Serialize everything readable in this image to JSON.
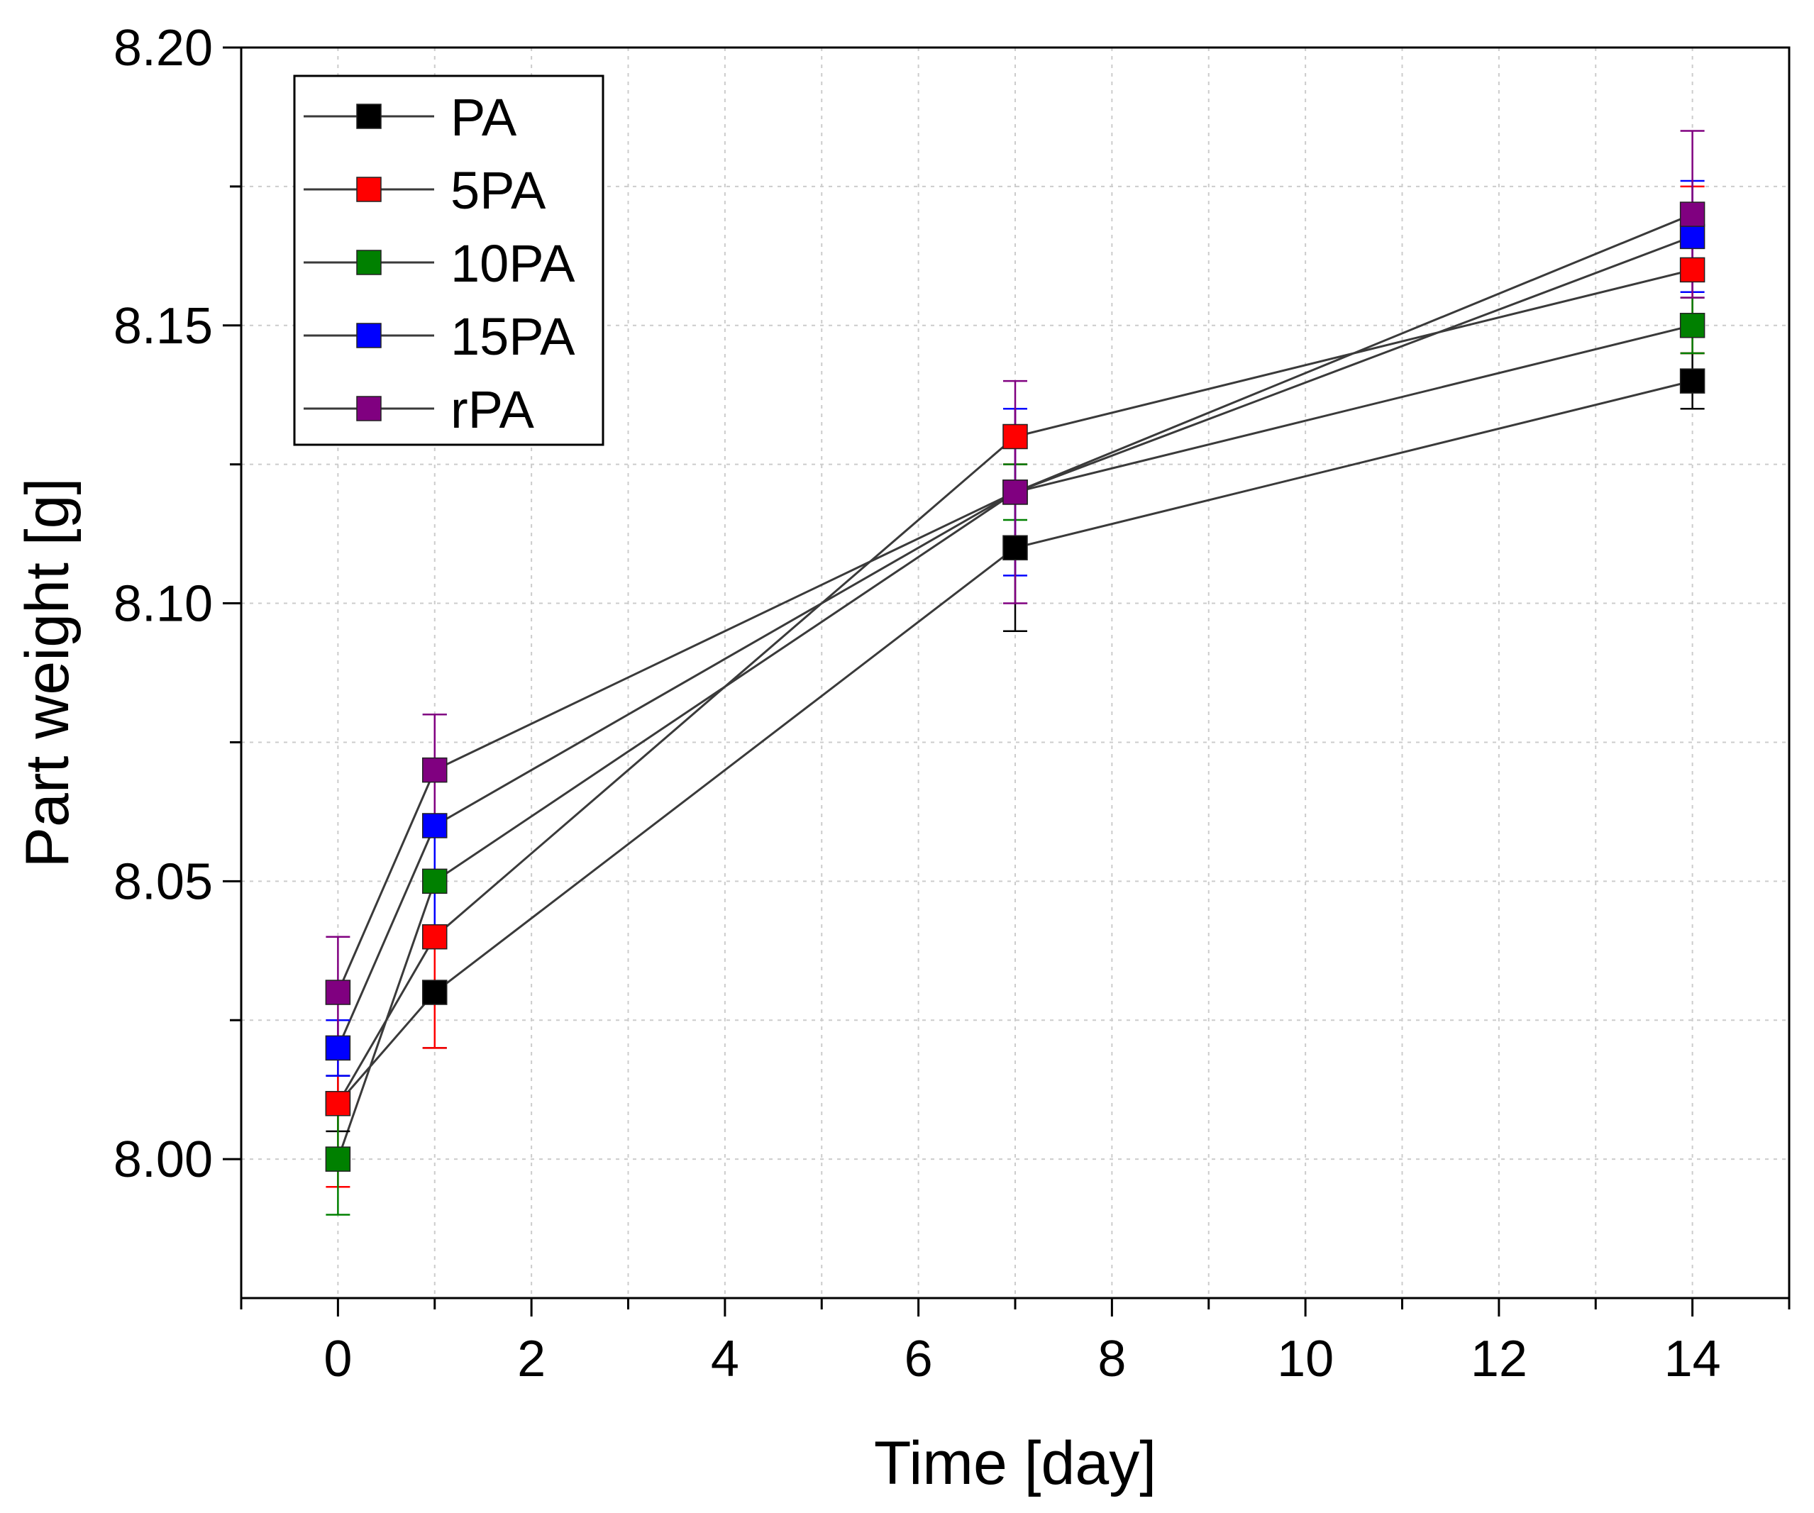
{
  "chart_data": {
    "type": "line",
    "title": "",
    "xlabel": "Time [day]",
    "ylabel": "Part weight [g]",
    "xlim": [
      -1,
      15
    ],
    "ylim": [
      7.975,
      8.2
    ],
    "x": [
      0,
      1,
      7,
      14
    ],
    "x_ticks": [
      0,
      2,
      4,
      6,
      8,
      10,
      12,
      14
    ],
    "x_tick_labels": [
      "0",
      "2",
      "4",
      "6",
      "8",
      "10",
      "12",
      "14"
    ],
    "y_ticks": [
      8.0,
      8.05,
      8.1,
      8.15,
      8.2
    ],
    "y_tick_labels": [
      "8.00",
      "8.05",
      "8.10",
      "8.15",
      "8.20"
    ],
    "grid": true,
    "legend_position": "top-left",
    "series": [
      {
        "name": "PA",
        "color": "#000000",
        "values": [
          8.01,
          8.03,
          8.11,
          8.14
        ],
        "errors": [
          0.005,
          0.01,
          0.015,
          0.005
        ]
      },
      {
        "name": "5PA",
        "color": "#ff0000",
        "values": [
          8.01,
          8.04,
          8.13,
          8.16
        ],
        "errors": [
          0.015,
          0.02,
          0.005,
          0.015
        ]
      },
      {
        "name": "10PA",
        "color": "#008000",
        "values": [
          8.0,
          8.05,
          8.12,
          8.15
        ],
        "errors": [
          0.01,
          0.01,
          0.005,
          0.005
        ]
      },
      {
        "name": "15PA",
        "color": "#0000ff",
        "values": [
          8.02,
          8.06,
          8.12,
          8.166
        ],
        "errors": [
          0.005,
          0.02,
          0.015,
          0.01
        ]
      },
      {
        "name": "rPA",
        "color": "#800080",
        "values": [
          8.03,
          8.07,
          8.12,
          8.17
        ],
        "errors": [
          0.01,
          0.01,
          0.02,
          0.015
        ]
      }
    ]
  }
}
